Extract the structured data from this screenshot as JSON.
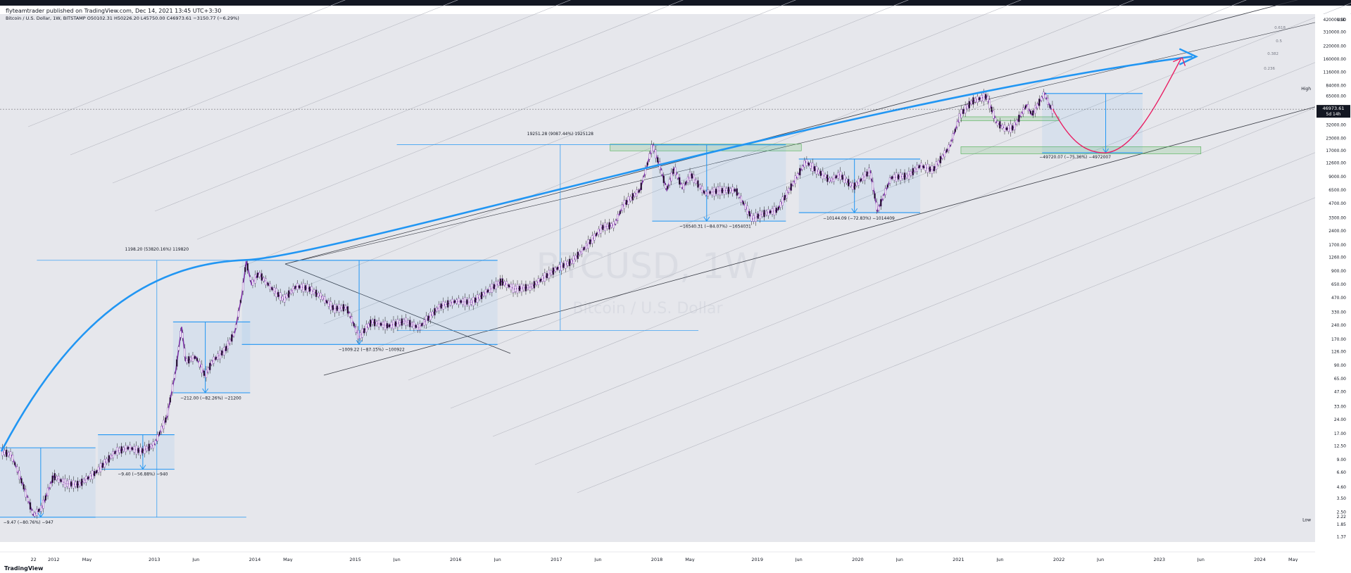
{
  "publisher_line": "flyteamtrader published on TradingView.com, Dec 14, 2021 13:45 UTC+3:30",
  "brand": "TradingView",
  "chart_data": {
    "type": "candlestick",
    "header": {
      "symbol_line": "Bitcoin / U.S. Dollar, 1W, BITSTAMP",
      "ohlc": "O50102.31  H50226.20  L45750.00  C46973.61  −3150.77 (−6.29%)"
    },
    "watermark": {
      "symbol": "BTCUSD, 1W",
      "name": "Bitcoin / U.S. Dollar"
    },
    "y_axis": {
      "scale": "log",
      "unit": "USD",
      "range": [
        1.2,
        480000
      ],
      "ticks": [
        "1.37",
        "1.85",
        "2.22",
        "2.50",
        "3.50",
        "4.60",
        "6.60",
        "9.00",
        "12.50",
        "17.00",
        "24.00",
        "33.00",
        "47.00",
        "65.00",
        "90.00",
        "126.00",
        "170.00",
        "240.00",
        "330.00",
        "470.00",
        "650.00",
        "900.00",
        "1260.00",
        "1700.00",
        "2400.00",
        "3300.00",
        "4700.00",
        "6500.00",
        "9000.00",
        "12600.00",
        "17000.00",
        "23000.00",
        "32000.00",
        "45000.00",
        "65000.00",
        "84000.00",
        "116000.00",
        "160000.00",
        "220000.00",
        "310000.00",
        "420000.00"
      ],
      "high_label": "High",
      "low_label": "Low",
      "last_price": "46973.61",
      "countdown": "5d 14h"
    },
    "x_axis": {
      "range": [
        "2011-06-20",
        "2024-07-20"
      ],
      "ticks": [
        {
          "label": "22",
          "date": "2011-10-20"
        },
        {
          "label": "2012",
          "date": "2012-01-01"
        },
        {
          "label": "May",
          "date": "2012-05-01"
        },
        {
          "label": "2013",
          "date": "2013-01-01"
        },
        {
          "label": "Jun",
          "date": "2013-06-01"
        },
        {
          "label": "2014",
          "date": "2014-01-01"
        },
        {
          "label": "May",
          "date": "2014-05-01"
        },
        {
          "label": "2015",
          "date": "2015-01-01"
        },
        {
          "label": "Jun",
          "date": "2015-06-01"
        },
        {
          "label": "2016",
          "date": "2016-01-01"
        },
        {
          "label": "Jun",
          "date": "2016-06-01"
        },
        {
          "label": "2017",
          "date": "2017-01-01"
        },
        {
          "label": "Jun",
          "date": "2017-06-01"
        },
        {
          "label": "2018",
          "date": "2018-01-01"
        },
        {
          "label": "May",
          "date": "2018-05-01"
        },
        {
          "label": "2019",
          "date": "2019-01-01"
        },
        {
          "label": "Jun",
          "date": "2019-06-01"
        },
        {
          "label": "2020",
          "date": "2020-01-01"
        },
        {
          "label": "Jun",
          "date": "2020-06-01"
        },
        {
          "label": "2021",
          "date": "2021-01-01"
        },
        {
          "label": "Jun",
          "date": "2021-06-01"
        },
        {
          "label": "2022",
          "date": "2022-01-01"
        },
        {
          "label": "Jun",
          "date": "2022-06-01"
        },
        {
          "label": "2023",
          "date": "2023-01-01"
        },
        {
          "label": "Jun",
          "date": "2023-06-01"
        },
        {
          "label": "2024",
          "date": "2024-01-01"
        },
        {
          "label": "May",
          "date": "2024-05-01"
        }
      ]
    },
    "price_path": [
      [
        "2011-06-25",
        11
      ],
      [
        "2011-08-01",
        10
      ],
      [
        "2011-09-10",
        5
      ],
      [
        "2011-10-20",
        2.3
      ],
      [
        "2011-11-20",
        2.8
      ],
      [
        "2012-01-01",
        6
      ],
      [
        "2012-02-15",
        5
      ],
      [
        "2012-04-01",
        4.9
      ],
      [
        "2012-06-01",
        6.5
      ],
      [
        "2012-08-15",
        11
      ],
      [
        "2012-10-01",
        12
      ],
      [
        "2012-11-15",
        11
      ],
      [
        "2013-01-01",
        13
      ],
      [
        "2013-02-15",
        25
      ],
      [
        "2013-03-20",
        80
      ],
      [
        "2013-04-10",
        230
      ],
      [
        "2013-04-25",
        100
      ],
      [
        "2013-06-01",
        110
      ],
      [
        "2013-07-05",
        70
      ],
      [
        "2013-08-01",
        100
      ],
      [
        "2013-09-15",
        130
      ],
      [
        "2013-10-20",
        200
      ],
      [
        "2013-11-15",
        500
      ],
      [
        "2013-12-01",
        1150
      ],
      [
        "2013-12-20",
        650
      ],
      [
        "2014-01-15",
        850
      ],
      [
        "2014-03-01",
        600
      ],
      [
        "2014-04-15",
        450
      ],
      [
        "2014-06-01",
        620
      ],
      [
        "2014-07-15",
        590
      ],
      [
        "2014-09-01",
        480
      ],
      [
        "2014-10-15",
        360
      ],
      [
        "2014-12-01",
        370
      ],
      [
        "2015-01-15",
        180
      ],
      [
        "2015-03-01",
        260
      ],
      [
        "2015-05-01",
        235
      ],
      [
        "2015-07-01",
        265
      ],
      [
        "2015-08-20",
        225
      ],
      [
        "2015-11-05",
        380
      ],
      [
        "2016-01-01",
        430
      ],
      [
        "2016-03-01",
        420
      ],
      [
        "2016-06-15",
        700
      ],
      [
        "2016-08-01",
        580
      ],
      [
        "2016-10-01",
        610
      ],
      [
        "2017-01-01",
        950
      ],
      [
        "2017-03-01",
        1150
      ],
      [
        "2017-05-15",
        2000
      ],
      [
        "2017-06-15",
        2600
      ],
      [
        "2017-08-01",
        2800
      ],
      [
        "2017-09-01",
        4500
      ],
      [
        "2017-11-01",
        6500
      ],
      [
        "2017-12-17",
        19500
      ],
      [
        "2018-01-15",
        11000
      ],
      [
        "2018-02-06",
        6500
      ],
      [
        "2018-03-05",
        11000
      ],
      [
        "2018-04-05",
        6800
      ],
      [
        "2018-05-05",
        9500
      ],
      [
        "2018-06-25",
        6000
      ],
      [
        "2018-08-15",
        6400
      ],
      [
        "2018-10-15",
        6500
      ],
      [
        "2018-12-15",
        3200
      ],
      [
        "2019-01-15",
        3600
      ],
      [
        "2019-03-15",
        4000
      ],
      [
        "2019-05-15",
        8000
      ],
      [
        "2019-06-26",
        13000
      ],
      [
        "2019-08-15",
        10000
      ],
      [
        "2019-09-25",
        8200
      ],
      [
        "2019-10-26",
        9500
      ],
      [
        "2019-12-17",
        7000
      ],
      [
        "2020-02-15",
        10400
      ],
      [
        "2020-03-13",
        3900
      ],
      [
        "2020-05-01",
        8800
      ],
      [
        "2020-07-01",
        9200
      ],
      [
        "2020-08-15",
        11800
      ],
      [
        "2020-10-01",
        10600
      ],
      [
        "2020-12-01",
        19000
      ],
      [
        "2021-01-08",
        41000
      ],
      [
        "2021-02-20",
        57000
      ],
      [
        "2021-04-14",
        64500
      ],
      [
        "2021-05-19",
        34000
      ],
      [
        "2021-06-22",
        29000
      ],
      [
        "2021-07-20",
        29800
      ],
      [
        "2021-09-06",
        52000
      ],
      [
        "2021-09-25",
        41000
      ],
      [
        "2021-11-10",
        69000
      ],
      [
        "2021-12-04",
        47000
      ],
      [
        "2021-12-13",
        46973
      ]
    ],
    "measurements": [
      {
        "label": "−9.47 (−80.76%) −947",
        "from": "2011-06-10",
        "to": "2012-06-01",
        "high": 12,
        "low": 2.2,
        "arrow_date": "2011-11-15",
        "label_at": "2011-10-01",
        "label_price": 1.88
      },
      {
        "label": "−9.40 (−56.88%) −940",
        "from": "2012-06-10",
        "to": "2013-03-15",
        "high": 16.5,
        "low": 7.1,
        "arrow_date": "2012-11-20",
        "label_at": "2012-11-20",
        "label_price": 6.1
      },
      {
        "label": "−212.00 (−82.26%) −21200",
        "from": "2013-03-10",
        "to": "2013-12-15",
        "high": 260,
        "low": 46,
        "arrow_date": "2013-07-05",
        "label_at": "2013-07-25",
        "label_price": 39
      },
      {
        "label": "−1009.22 (−87.15%) −100922",
        "from": "2013-11-15",
        "to": "2016-06-01",
        "high": 1170,
        "low": 150,
        "arrow_date": "2015-01-15",
        "label_at": "2015-03-01",
        "label_price": 128
      },
      {
        "label": "−16540.31 (−84.07%) −1654031",
        "from": "2017-12-15",
        "to": "2019-04-15",
        "high": 19700,
        "low": 3050,
        "arrow_date": "2018-07-01",
        "label_at": "2018-08-01",
        "label_price": 2600
      },
      {
        "label": "−10144.09 (−72.83%) −1014409",
        "from": "2019-06-01",
        "to": "2020-08-15",
        "high": 13900,
        "low": 3750,
        "arrow_date": "2019-12-20",
        "label_at": "2020-01-05",
        "label_price": 3150
      },
      {
        "label": "−49720.07 (−75.36%) −4972007",
        "from": "2021-11-01",
        "to": "2022-11-01",
        "high": 69000,
        "low": 16200,
        "arrow_date": "2022-06-20",
        "label_at": "2022-03-01",
        "label_price": 14100
      }
    ],
    "rises": [
      {
        "label": "1198.20 (53820.16%) 119820",
        "date": "2013-01-10",
        "from": "2011-11-01",
        "to": "2013-12-01",
        "low": 2.2,
        "high": 1170,
        "label_price": 1480
      },
      {
        "label": "19251.28 (9087.44%) 1925128",
        "date": "2017-01-15",
        "from": "2015-06-01",
        "to": "2018-06-01",
        "low": 210,
        "high": 19800,
        "label_price": 25000
      }
    ],
    "green_zones": [
      {
        "from": "2017-07-15",
        "to": "2019-06-10",
        "top": 20000,
        "bottom": 17000
      },
      {
        "from": "2021-01-01",
        "to": "2022-01-01",
        "top": 39000,
        "bottom": 35500
      },
      {
        "from": "2021-01-10",
        "to": "2023-06-01",
        "top": 18800,
        "bottom": 15800
      }
    ],
    "fib_levels": [
      "0.618",
      "0.5",
      "0.382",
      "0.236"
    ],
    "annotations": [
      "logarithmic growth curve (blue)",
      "projected drop and recovery (red)"
    ]
  }
}
